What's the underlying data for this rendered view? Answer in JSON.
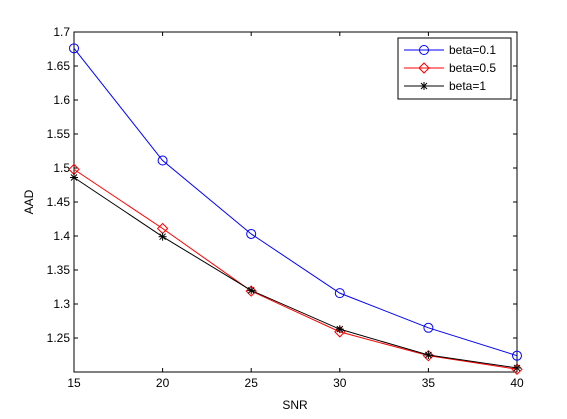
{
  "chart_data": {
    "type": "line",
    "title": "",
    "xlabel": "SNR",
    "ylabel": "AAD",
    "x": [
      15,
      20,
      25,
      30,
      35,
      40
    ],
    "xlim": [
      15,
      40
    ],
    "ylim": [
      1.2,
      1.7
    ],
    "xticks": [
      "15",
      "20",
      "25",
      "30",
      "35",
      "40"
    ],
    "yticks": [
      "1.25",
      "1.3",
      "1.35",
      "1.4",
      "1.45",
      "1.5",
      "1.55",
      "1.6",
      "1.65",
      "1.7"
    ],
    "grid": false,
    "legend_position": "top-right",
    "series": [
      {
        "name": "beta=0.1",
        "color": "#0000ff",
        "marker": "circle",
        "values": [
          1.676,
          1.511,
          1.403,
          1.316,
          1.265,
          1.224
        ]
      },
      {
        "name": "beta=0.5",
        "color": "#ff0000",
        "marker": "diamond",
        "values": [
          1.498,
          1.411,
          1.319,
          1.259,
          1.224,
          1.204
        ]
      },
      {
        "name": "beta=1",
        "color": "#000000",
        "marker": "asterisk",
        "values": [
          1.486,
          1.399,
          1.32,
          1.263,
          1.225,
          1.206
        ]
      }
    ]
  }
}
